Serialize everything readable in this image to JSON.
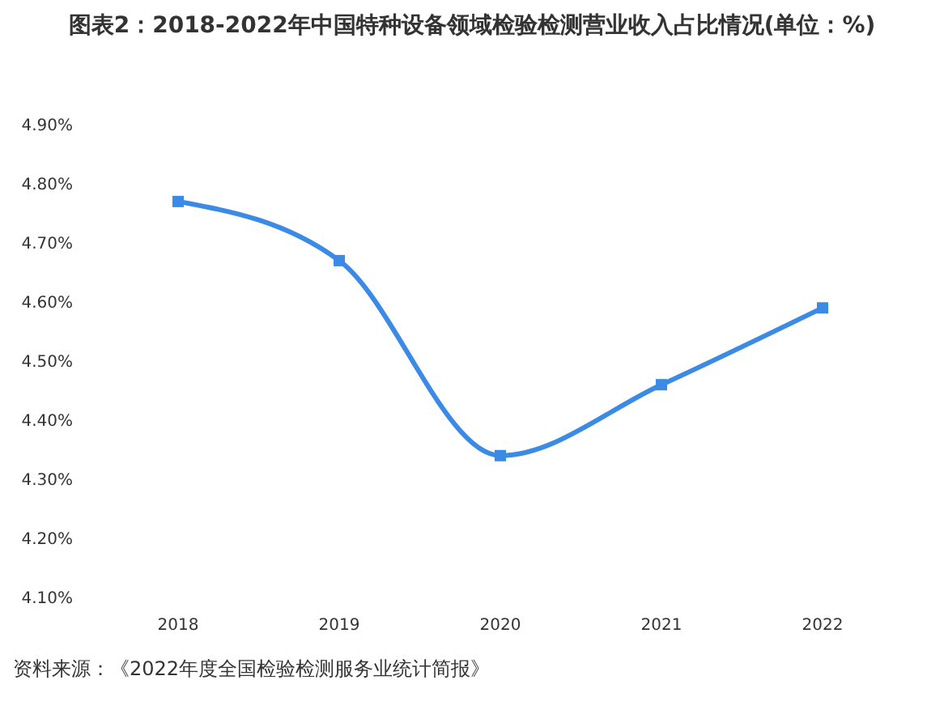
{
  "chart_data": {
    "type": "line",
    "title": "图表2：2018-2022年中国特种设备领域检验检测营业收入占比情况(单位：%)",
    "categories": [
      "2018",
      "2019",
      "2020",
      "2021",
      "2022"
    ],
    "series": [
      {
        "color": "#3b8ae6",
        "values": [
          4.77,
          4.67,
          4.34,
          4.46,
          4.59
        ]
      }
    ],
    "ylim": [
      4.1,
      4.9
    ],
    "yticks": [
      {
        "value": 4.1,
        "label": "4.10%"
      },
      {
        "value": 4.2,
        "label": "4.20%"
      },
      {
        "value": 4.3,
        "label": "4.30%"
      },
      {
        "value": 4.4,
        "label": "4.40%"
      },
      {
        "value": 4.5,
        "label": "4.50%"
      },
      {
        "value": 4.6,
        "label": "4.60%"
      },
      {
        "value": 4.7,
        "label": "4.70%"
      },
      {
        "value": 4.8,
        "label": "4.80%"
      },
      {
        "value": 4.9,
        "label": "4.90%"
      }
    ],
    "grid": false,
    "marker": "square",
    "line_style": "solid",
    "annotations": [
      "资料来源：《2022年度全国检验检测服务业统计简报》"
    ]
  }
}
